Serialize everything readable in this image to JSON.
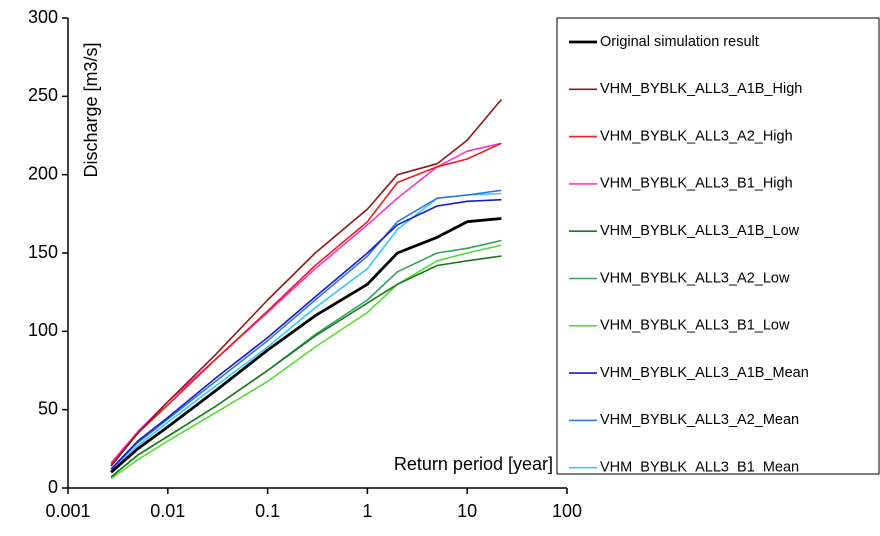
{
  "chart_data": {
    "type": "line",
    "ylabel": "Discharge [m3/s]",
    "xlabel": "Return period [year]",
    "x": [
      0.0027,
      0.005,
      0.01,
      0.03,
      0.1,
      0.3,
      1,
      2,
      5,
      10,
      22
    ],
    "xlim": [
      0.001,
      100
    ],
    "xticks": [
      0.001,
      0.01,
      0.1,
      1,
      10,
      100
    ],
    "xscale": "log",
    "ylim": [
      0,
      300
    ],
    "yticks": [
      0,
      50,
      100,
      150,
      200,
      250,
      300
    ],
    "grid": false,
    "legend": "right",
    "series": [
      {
        "name": "Original simulation result",
        "color": "#000000",
        "values": [
          10,
          25,
          39,
          62,
          88,
          110,
          130,
          150,
          160,
          170,
          172
        ]
      },
      {
        "name": "VHM_BYBLK_ALL3_A1B_High",
        "color": "#8b1a1a",
        "values": [
          14,
          35,
          55,
          85,
          120,
          150,
          178,
          200,
          207,
          222,
          248
        ]
      },
      {
        "name": "VHM_BYBLK_ALL3_A2_High",
        "color": "#e82020",
        "values": [
          15,
          35,
          53,
          82,
          113,
          142,
          170,
          195,
          205,
          210,
          220
        ]
      },
      {
        "name": "VHM_BYBLK_ALL3_B1_High",
        "color": "#ff33cc",
        "values": [
          16,
          36,
          55,
          82,
          112,
          140,
          168,
          185,
          205,
          215,
          220
        ]
      },
      {
        "name": "VHM_BYBLK_ALL3_A1B_Low",
        "color": "#1a7a1a",
        "values": [
          7,
          21,
          33,
          52,
          75,
          97,
          118,
          130,
          142,
          145,
          148
        ]
      },
      {
        "name": "VHM_BYBLK_ALL3_A2_Low",
        "color": "#33a066",
        "values": [
          7,
          21,
          33,
          52,
          75,
          98,
          120,
          138,
          150,
          153,
          158
        ]
      },
      {
        "name": "VHM_BYBLK_ALL3_B1_Low",
        "color": "#55dd33",
        "values": [
          6,
          18,
          30,
          48,
          68,
          90,
          112,
          130,
          145,
          150,
          155
        ]
      },
      {
        "name": "VHM_BYBLK_ALL3_A1B_Mean",
        "color": "#1a1acc",
        "values": [
          12,
          30,
          45,
          70,
          96,
          122,
          150,
          168,
          180,
          183,
          184
        ]
      },
      {
        "name": "VHM_BYBLK_ALL3_A2_Mean",
        "color": "#3377dd",
        "values": [
          12,
          29,
          44,
          68,
          94,
          120,
          148,
          170,
          185,
          187,
          190
        ]
      },
      {
        "name": "VHM_BYBLK_ALL3_B1_Mean",
        "color": "#33ccff",
        "values": [
          11,
          27,
          42,
          65,
          90,
          115,
          140,
          165,
          185,
          187,
          188
        ]
      }
    ]
  }
}
